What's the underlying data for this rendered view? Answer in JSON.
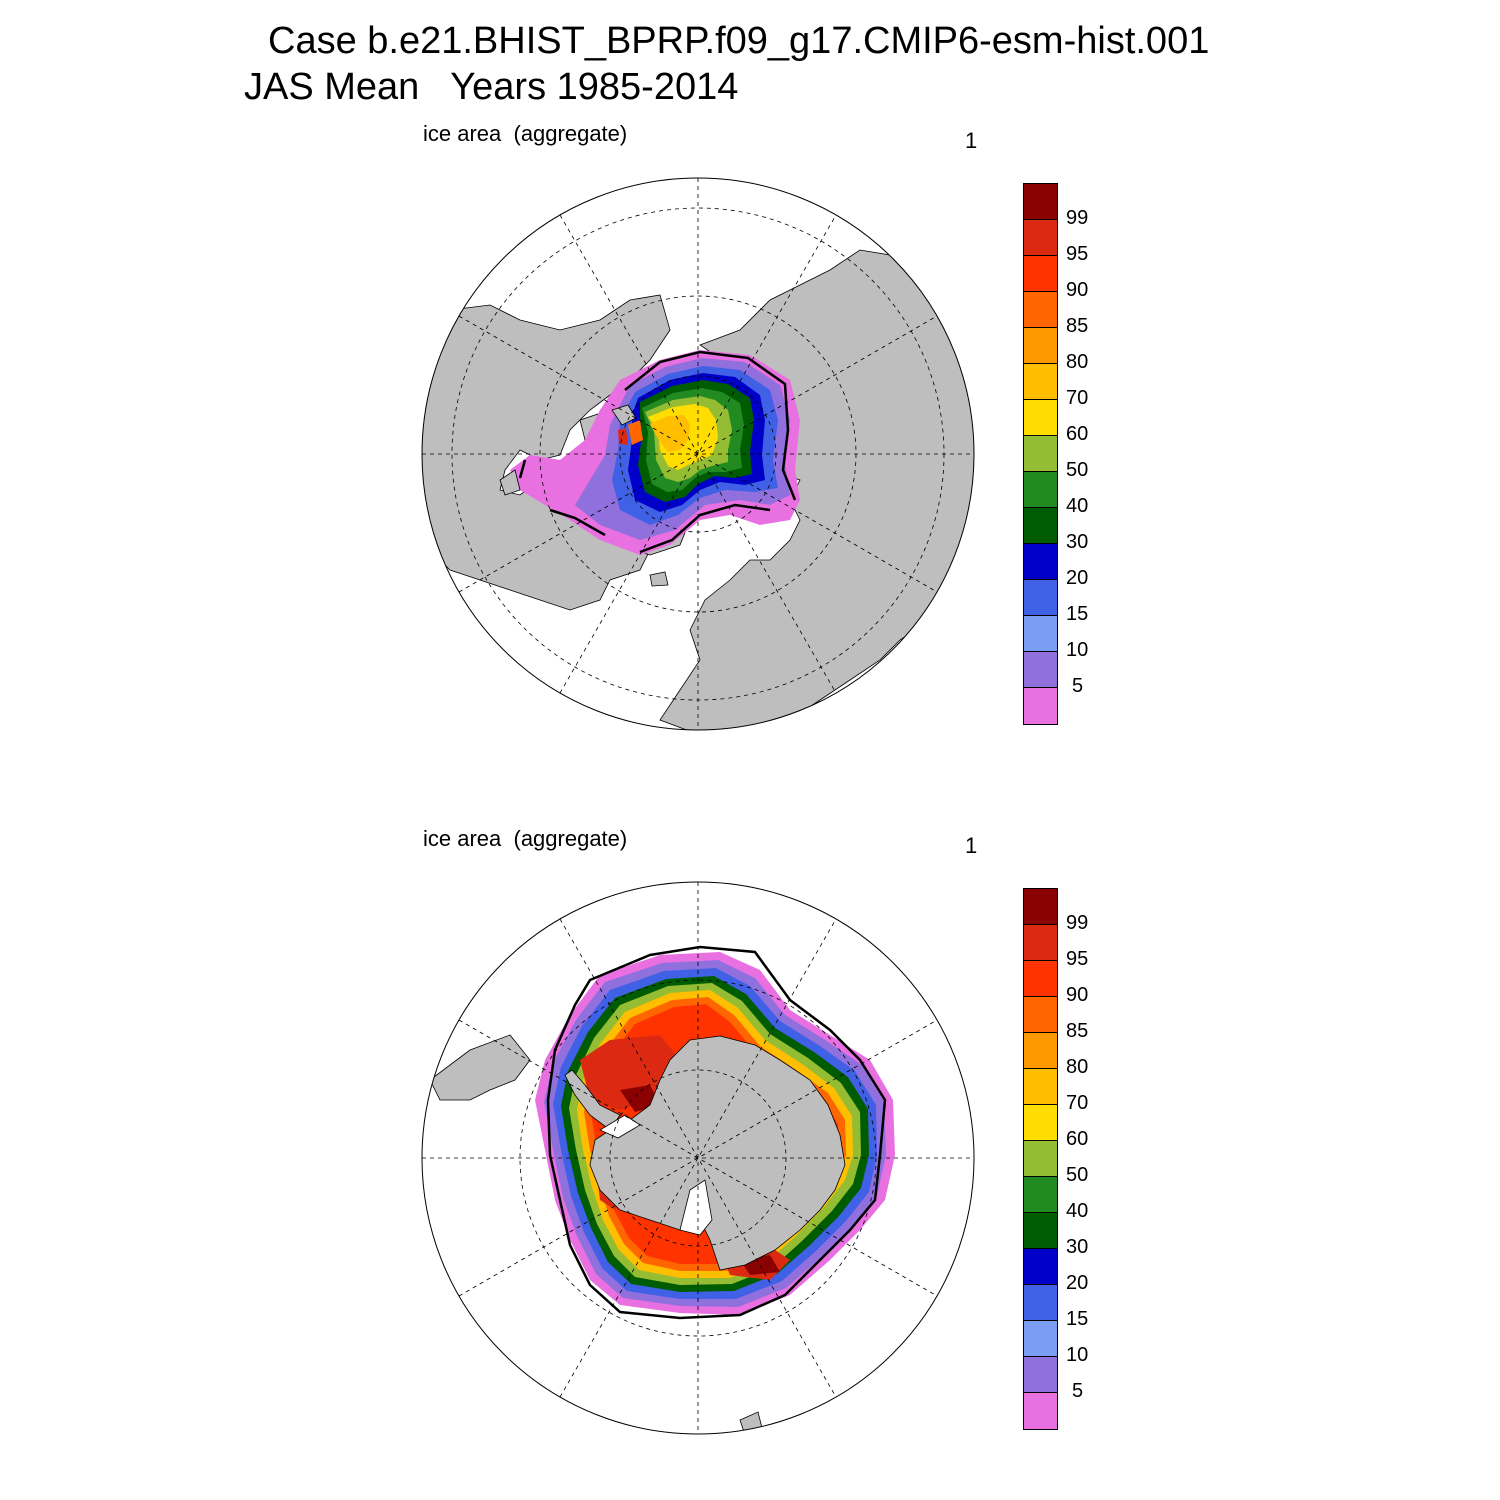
{
  "title": {
    "line1": "Case b.e21.BHIST_BPRP.f09_g17.CMIP6-esm-hist.001",
    "line2": "JAS Mean   Years 1985-2014"
  },
  "colorbar": {
    "colors": [
      "#8b0000",
      "#dc2a12",
      "#ff3300",
      "#ff6600",
      "#ff9900",
      "#ffbf00",
      "#ffdd00",
      "#95bd33",
      "#218a21",
      "#005c00",
      "#0000c8",
      "#4060e6",
      "#7a9ef2",
      "#9070dd",
      "#e870e0"
    ],
    "labels": [
      "99",
      "95",
      "90",
      "85",
      "80",
      "70",
      "60",
      "50",
      "40",
      "30",
      "20",
      "15",
      "10",
      "5"
    ]
  },
  "panels": [
    {
      "id": "north",
      "label": "ice area  (aggregate)",
      "unit_label": "1"
    },
    {
      "id": "south",
      "label": "ice area  (aggregate)",
      "unit_label": "1"
    }
  ]
}
